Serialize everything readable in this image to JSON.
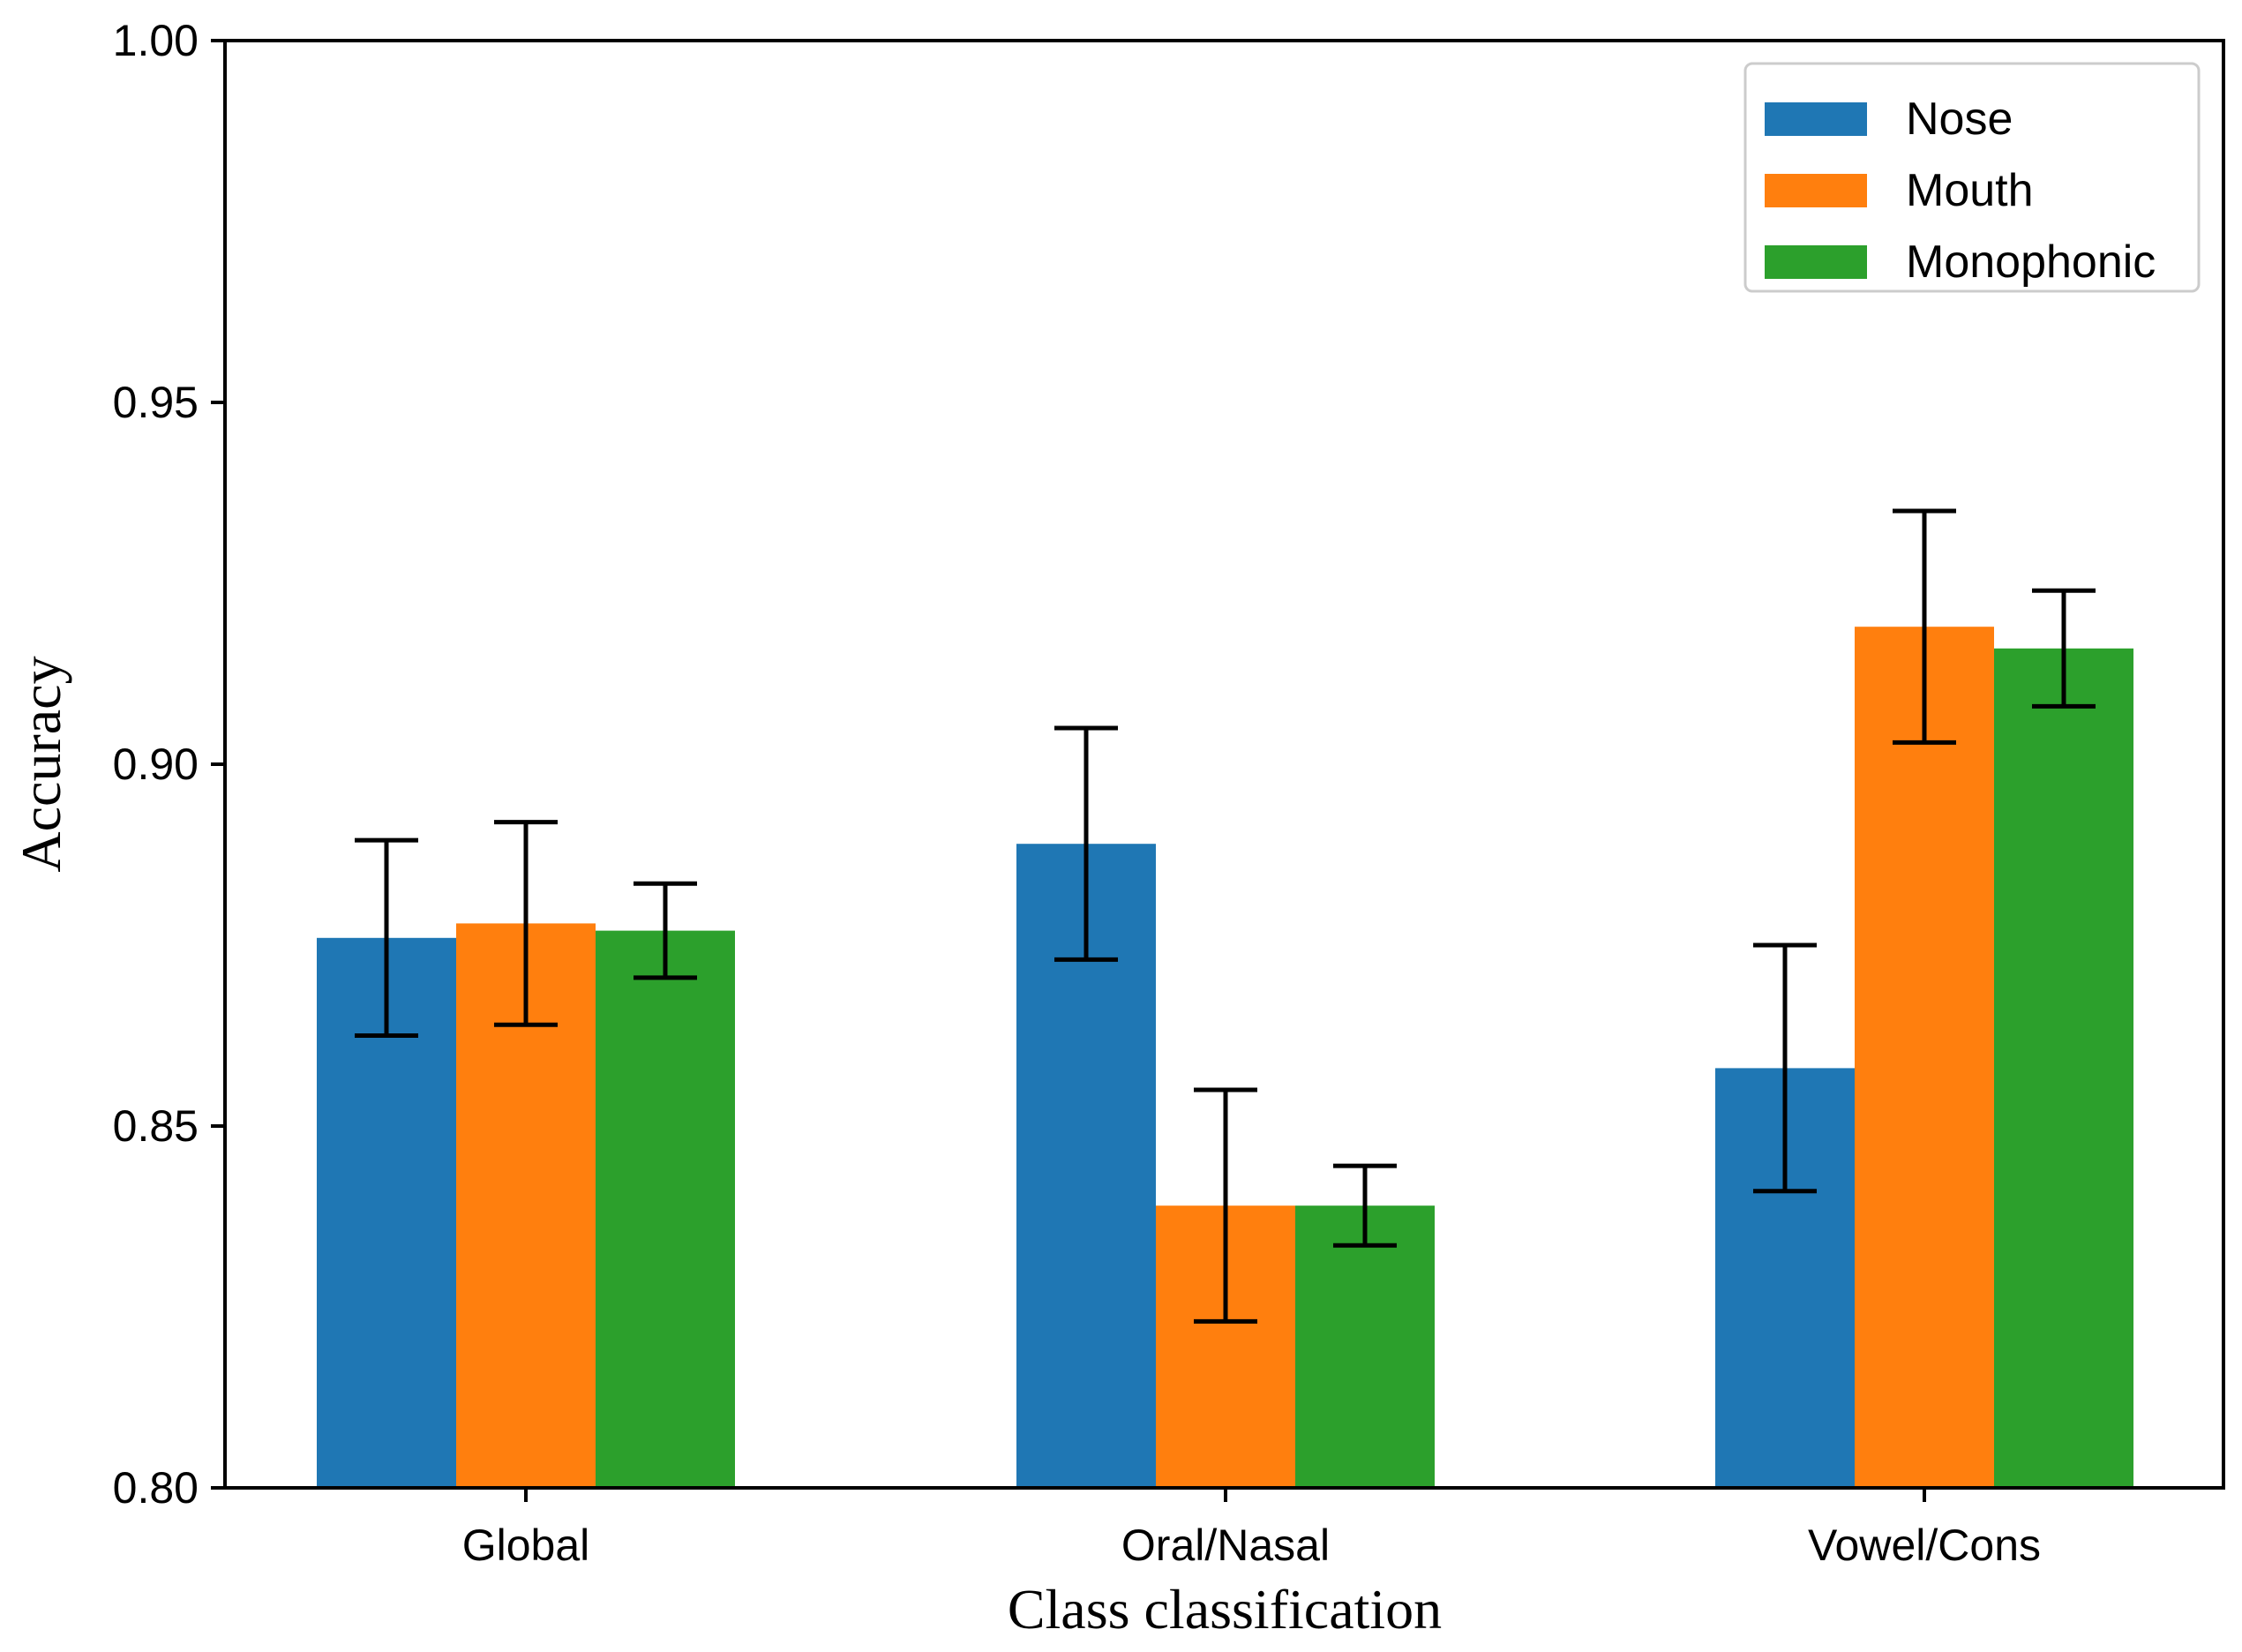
{
  "chart_data": {
    "type": "bar",
    "title": "",
    "xlabel": "Class classification",
    "ylabel": "Accuracy",
    "ylim": [
      0.8,
      1.0
    ],
    "yticks": [
      "0.80",
      "0.85",
      "0.90",
      "0.95",
      "1.00"
    ],
    "categories": [
      "Global",
      "Oral/Nasal",
      "Vowel/Cons"
    ],
    "series": [
      {
        "name": "Nose",
        "color": "#1f77b4",
        "values": [
          0.876,
          0.889,
          0.858
        ],
        "errors": [
          0.0135,
          0.016,
          0.017
        ]
      },
      {
        "name": "Mouth",
        "color": "#ff7f0e",
        "values": [
          0.878,
          0.839,
          0.919
        ],
        "errors": [
          0.014,
          0.016,
          0.016
        ]
      },
      {
        "name": "Monophonic",
        "color": "#2ca02c",
        "values": [
          0.877,
          0.839,
          0.916
        ],
        "errors": [
          0.0065,
          0.0055,
          0.008
        ]
      }
    ],
    "grid": false,
    "legend": "top-right"
  }
}
